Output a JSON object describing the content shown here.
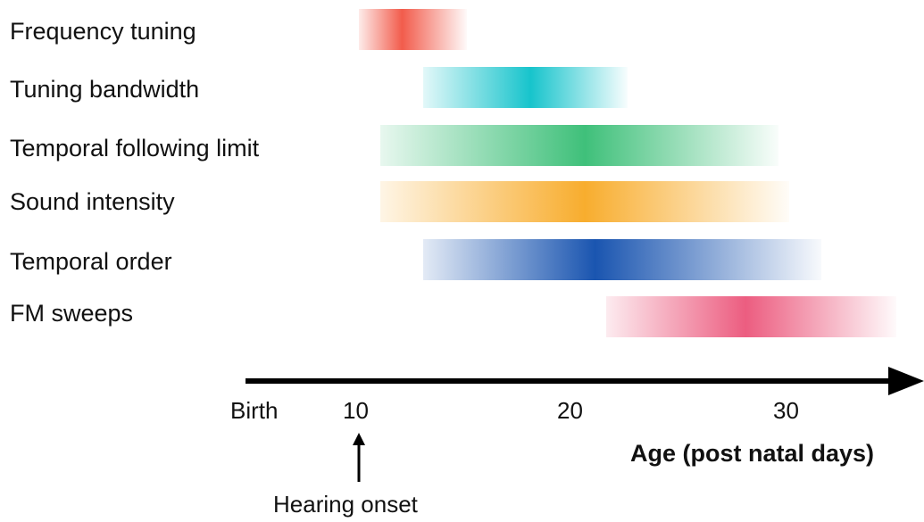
{
  "rows": [
    {
      "label": "Frequency tuning",
      "start": 10,
      "peak": 12,
      "end": 15,
      "color": "#f25c4c"
    },
    {
      "label": "Tuning bandwidth",
      "start": 13,
      "peak": 18,
      "end": 22.5,
      "color": "#17c4cc"
    },
    {
      "label": "Temporal following limit",
      "start": 11,
      "peak": 20.5,
      "end": 29.5,
      "color": "#3fc07a"
    },
    {
      "label": "Sound intensity",
      "start": 11,
      "peak": 20.5,
      "end": 30,
      "color": "#f8ad2e"
    },
    {
      "label": "Temporal order",
      "start": 13,
      "peak": 21,
      "end": 31.5,
      "color": "#1a55b0"
    },
    {
      "label": "FM sweeps",
      "start": 21.5,
      "peak": 28,
      "end": 35,
      "color": "#ec5d80"
    }
  ],
  "axis": {
    "title": "Age (post natal days)",
    "ticks": [
      {
        "label": "Birth",
        "value": 5.5
      },
      {
        "label": "10",
        "value": 10
      },
      {
        "label": "20",
        "value": 20
      },
      {
        "label": "30",
        "value": 30
      }
    ]
  },
  "annotation": {
    "label": "Hearing onset",
    "value": 10
  }
}
